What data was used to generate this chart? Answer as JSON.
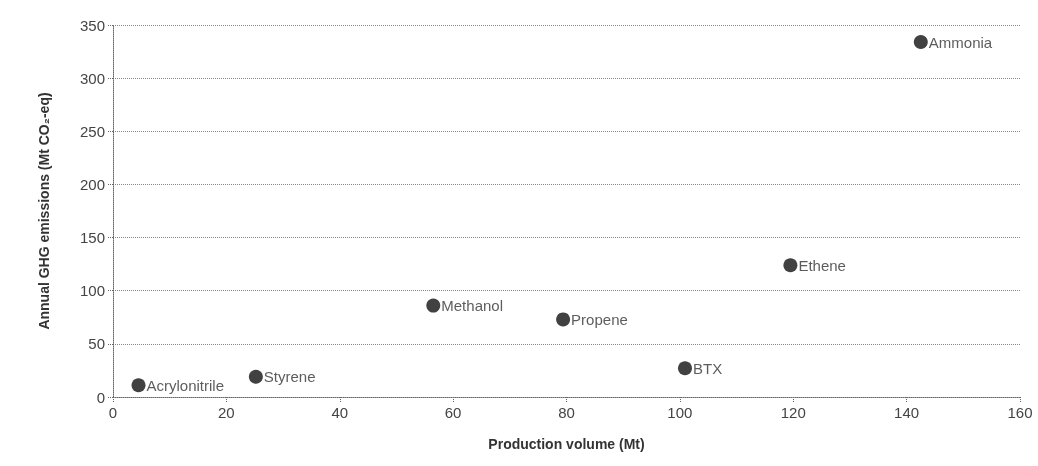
{
  "chart_data": {
    "type": "scatter",
    "xlabel": "Production volume (Mt)",
    "ylabel": "Annual GHG emissions (Mt CO₂-eq)",
    "x": [
      4.5,
      25.2,
      56.5,
      79.4,
      100.9,
      119.5,
      142.5
    ],
    "values": [
      11,
      19,
      86,
      73,
      27,
      124,
      334
    ],
    "color": "#111111",
    "marker": "circle",
    "xlim": [
      0,
      160
    ],
    "xticks": [
      0,
      20,
      40,
      60,
      80,
      100,
      120,
      140,
      160
    ],
    "ylim": [
      0,
      350
    ],
    "yticks": [
      0,
      50,
      100,
      150,
      200,
      250,
      300,
      350
    ],
    "grid": "y",
    "annotations": [
      {
        "text": "Acrylonitrile",
        "x": 4.5,
        "y": 11
      },
      {
        "text": "Styrene",
        "x": 25.2,
        "y": 19
      },
      {
        "text": "Methanol",
        "x": 56.5,
        "y": 86
      },
      {
        "text": "Propene",
        "x": 79.4,
        "y": 73
      },
      {
        "text": "BTX",
        "x": 100.9,
        "y": 27
      },
      {
        "text": "Ethene",
        "x": 119.5,
        "y": 124
      },
      {
        "text": "Ammonia",
        "x": 142.5,
        "y": 334
      }
    ]
  }
}
